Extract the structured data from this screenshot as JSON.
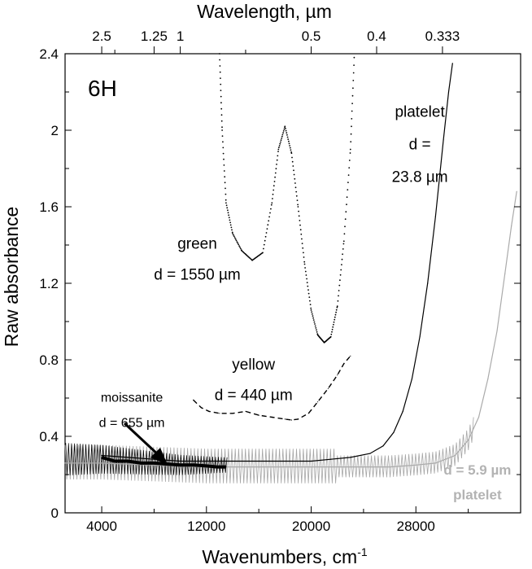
{
  "chart_data": {
    "type": "line",
    "panel_label": "6H",
    "xlabel": "Wavenumbers, cm",
    "xlabel_sup": "-1",
    "x2label": "Wavelength, µm",
    "ylabel": "Raw absorbance",
    "xlim": [
      1200,
      36000
    ],
    "ylim": [
      0,
      2.4
    ],
    "x_ticks": [
      4000,
      12000,
      20000,
      28000
    ],
    "x_tick_labels": [
      "4000",
      "12000",
      "20000",
      "28000"
    ],
    "y_ticks": [
      0,
      0.4,
      0.8,
      1.2,
      1.6,
      2,
      2.4
    ],
    "y_tick_labels": [
      "0",
      "0.4",
      "0.8",
      "1.2",
      "1.6",
      "2",
      "2.4"
    ],
    "top_ticks_um": [
      2.5,
      1.25,
      1,
      0.5,
      0.4,
      0.333
    ],
    "top_tick_labels": [
      "2.5",
      "1.25",
      "1",
      "0.5",
      "0.4",
      "0.333"
    ],
    "series": [
      {
        "color": "#000000",
        "style": "dotted",
        "points": [
          [
            13000,
            2.4
          ],
          [
            13200,
            2.0
          ],
          [
            13500,
            1.62
          ],
          [
            14000,
            1.46
          ],
          [
            14700,
            1.37
          ],
          [
            15500,
            1.32
          ],
          [
            16300,
            1.36
          ],
          [
            17000,
            1.62
          ],
          [
            17500,
            1.9
          ],
          [
            18000,
            2.02
          ],
          [
            18500,
            1.88
          ],
          [
            19000,
            1.6
          ],
          [
            19500,
            1.3
          ],
          [
            20000,
            1.06
          ],
          [
            20500,
            0.93
          ],
          [
            21000,
            0.89
          ],
          [
            21500,
            0.92
          ],
          [
            22000,
            1.08
          ],
          [
            22500,
            1.42
          ],
          [
            23000,
            1.9
          ],
          [
            23300,
            2.4
          ]
        ]
      },
      {
        "color": "#000000",
        "style": "dashed",
        "points": [
          [
            11000,
            0.59
          ],
          [
            11600,
            0.55
          ],
          [
            12200,
            0.53
          ],
          [
            13000,
            0.52
          ],
          [
            14000,
            0.52
          ],
          [
            15000,
            0.53
          ],
          [
            16000,
            0.51
          ],
          [
            17000,
            0.5
          ],
          [
            18000,
            0.49
          ],
          [
            18500,
            0.485
          ],
          [
            19000,
            0.49
          ],
          [
            19800,
            0.52
          ],
          [
            20500,
            0.58
          ],
          [
            21300,
            0.65
          ],
          [
            22000,
            0.72
          ],
          [
            22500,
            0.78
          ],
          [
            23000,
            0.82
          ]
        ]
      },
      {
        "color": "#000000",
        "style": "solid",
        "points": [
          [
            4000,
            0.3
          ],
          [
            6000,
            0.29
          ],
          [
            8000,
            0.28
          ],
          [
            10000,
            0.27
          ],
          [
            12000,
            0.27
          ],
          [
            14000,
            0.27
          ],
          [
            16000,
            0.27
          ],
          [
            18000,
            0.27
          ],
          [
            20000,
            0.27
          ],
          [
            21500,
            0.28
          ],
          [
            23000,
            0.29
          ],
          [
            24500,
            0.31
          ],
          [
            25500,
            0.35
          ],
          [
            26300,
            0.42
          ],
          [
            27000,
            0.53
          ],
          [
            27700,
            0.7
          ],
          [
            28300,
            0.92
          ],
          [
            28900,
            1.2
          ],
          [
            29500,
            1.55
          ],
          [
            30100,
            1.95
          ],
          [
            30500,
            2.2
          ],
          [
            30800,
            2.35
          ]
        ]
      },
      {
        "color": "#aaaaaa",
        "style": "solid",
        "points": [
          [
            1200,
            0.26
          ],
          [
            4000,
            0.26
          ],
          [
            8000,
            0.25
          ],
          [
            12000,
            0.24
          ],
          [
            16000,
            0.24
          ],
          [
            20000,
            0.24
          ],
          [
            24000,
            0.24
          ],
          [
            26000,
            0.24
          ],
          [
            28000,
            0.25
          ],
          [
            29500,
            0.26
          ],
          [
            31000,
            0.3
          ],
          [
            32000,
            0.38
          ],
          [
            32800,
            0.5
          ],
          [
            33500,
            0.7
          ],
          [
            34200,
            0.95
          ],
          [
            34800,
            1.25
          ],
          [
            35300,
            1.5
          ],
          [
            35700,
            1.68
          ]
        ]
      },
      {
        "color": "#000000",
        "style": "thick",
        "points": [
          [
            4000,
            0.29
          ],
          [
            5000,
            0.27
          ],
          [
            6000,
            0.27
          ],
          [
            7000,
            0.26
          ],
          [
            8000,
            0.26
          ],
          [
            9000,
            0.255
          ],
          [
            10000,
            0.25
          ],
          [
            11000,
            0.25
          ],
          [
            12000,
            0.245
          ],
          [
            12800,
            0.24
          ],
          [
            13500,
            0.24
          ]
        ]
      }
    ],
    "annotations": [
      {
        "text": "green",
        "x": 11300,
        "y": 1.38
      },
      {
        "text": "d = 1550 µm",
        "x": 11300,
        "y": 1.22
      },
      {
        "text": "yellow",
        "x": 15600,
        "y": 0.75
      },
      {
        "text": "d = 440 µm",
        "x": 15600,
        "y": 0.59
      },
      {
        "text": "platelet",
        "x": 28300,
        "y": 2.07
      },
      {
        "text": "d =",
        "x": 28300,
        "y": 1.9
      },
      {
        "text": "23.8 µm",
        "x": 28300,
        "y": 1.73
      },
      {
        "text": "moissanite",
        "x": 6300,
        "y": 0.58
      },
      {
        "text": "d = 655 µm",
        "x": 6300,
        "y": 0.45
      },
      {
        "text": "d = 5.9 µm",
        "x": 32700,
        "y": 0.2
      },
      {
        "text": "platelet",
        "x": 32700,
        "y": 0.07
      }
    ]
  }
}
